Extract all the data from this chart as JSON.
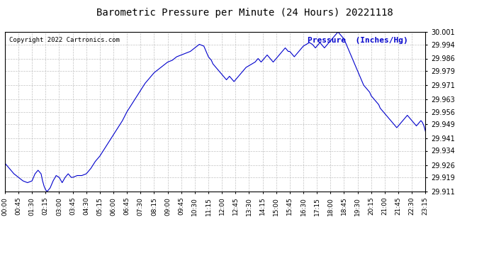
{
  "title": "Barometric Pressure per Minute (24 Hours) 20221118",
  "copyright": "Copyright 2022 Cartronics.com",
  "legend_label": "Pressure  (Inches/Hg)",
  "line_color": "#0000cc",
  "background_color": "#ffffff",
  "grid_color": "#bbbbbb",
  "ylim": [
    29.911,
    30.001
  ],
  "yticks": [
    29.911,
    29.919,
    29.926,
    29.934,
    29.941,
    29.949,
    29.956,
    29.963,
    29.971,
    29.979,
    29.986,
    29.994,
    30.001
  ],
  "xtick_labels": [
    "00:00",
    "00:45",
    "01:30",
    "02:15",
    "03:00",
    "03:45",
    "04:30",
    "05:15",
    "06:00",
    "06:45",
    "07:30",
    "08:15",
    "09:00",
    "09:45",
    "10:30",
    "11:15",
    "12:00",
    "12:45",
    "13:30",
    "14:15",
    "15:00",
    "15:45",
    "16:30",
    "17:15",
    "18:00",
    "18:45",
    "19:30",
    "20:15",
    "21:00",
    "21:45",
    "22:30",
    "23:15"
  ],
  "time_points": [
    0,
    45,
    90,
    135,
    180,
    225,
    270,
    315,
    360,
    405,
    450,
    495,
    540,
    585,
    630,
    675,
    720,
    765,
    810,
    855,
    900,
    945,
    990,
    1035,
    1080,
    1125,
    1170,
    1215,
    1260,
    1305,
    1350,
    1395
  ],
  "pressure_data": [
    [
      0,
      29.927
    ],
    [
      15,
      29.924
    ],
    [
      30,
      29.921
    ],
    [
      45,
      29.919
    ],
    [
      60,
      29.917
    ],
    [
      75,
      29.916
    ],
    [
      90,
      29.917
    ],
    [
      100,
      29.921
    ],
    [
      110,
      29.923
    ],
    [
      120,
      29.921
    ],
    [
      125,
      29.917
    ],
    [
      130,
      29.914
    ],
    [
      135,
      29.912
    ],
    [
      140,
      29.911
    ],
    [
      150,
      29.913
    ],
    [
      160,
      29.917
    ],
    [
      170,
      29.92
    ],
    [
      180,
      29.919
    ],
    [
      190,
      29.916
    ],
    [
      200,
      29.919
    ],
    [
      210,
      29.921
    ],
    [
      215,
      29.92
    ],
    [
      220,
      29.919
    ],
    [
      225,
      29.919
    ],
    [
      240,
      29.92
    ],
    [
      255,
      29.92
    ],
    [
      270,
      29.921
    ],
    [
      285,
      29.924
    ],
    [
      300,
      29.928
    ],
    [
      315,
      29.931
    ],
    [
      330,
      29.935
    ],
    [
      345,
      29.939
    ],
    [
      360,
      29.943
    ],
    [
      375,
      29.947
    ],
    [
      390,
      29.951
    ],
    [
      405,
      29.956
    ],
    [
      420,
      29.96
    ],
    [
      435,
      29.964
    ],
    [
      450,
      29.968
    ],
    [
      465,
      29.972
    ],
    [
      480,
      29.975
    ],
    [
      495,
      29.978
    ],
    [
      510,
      29.98
    ],
    [
      525,
      29.982
    ],
    [
      540,
      29.984
    ],
    [
      555,
      29.985
    ],
    [
      570,
      29.987
    ],
    [
      585,
      29.988
    ],
    [
      600,
      29.989
    ],
    [
      615,
      29.99
    ],
    [
      630,
      29.992
    ],
    [
      645,
      29.994
    ],
    [
      660,
      29.993
    ],
    [
      665,
      29.991
    ],
    [
      670,
      29.989
    ],
    [
      675,
      29.987
    ],
    [
      680,
      29.986
    ],
    [
      685,
      29.985
    ],
    [
      690,
      29.983
    ],
    [
      695,
      29.982
    ],
    [
      700,
      29.981
    ],
    [
      705,
      29.98
    ],
    [
      710,
      29.979
    ],
    [
      715,
      29.978
    ],
    [
      720,
      29.977
    ],
    [
      725,
      29.976
    ],
    [
      730,
      29.975
    ],
    [
      735,
      29.974
    ],
    [
      740,
      29.975
    ],
    [
      745,
      29.976
    ],
    [
      750,
      29.975
    ],
    [
      755,
      29.974
    ],
    [
      760,
      29.973
    ],
    [
      765,
      29.974
    ],
    [
      770,
      29.975
    ],
    [
      775,
      29.976
    ],
    [
      780,
      29.977
    ],
    [
      785,
      29.978
    ],
    [
      790,
      29.979
    ],
    [
      795,
      29.98
    ],
    [
      800,
      29.981
    ],
    [
      810,
      29.982
    ],
    [
      820,
      29.983
    ],
    [
      830,
      29.984
    ],
    [
      840,
      29.986
    ],
    [
      845,
      29.985
    ],
    [
      850,
      29.984
    ],
    [
      855,
      29.985
    ],
    [
      860,
      29.986
    ],
    [
      865,
      29.987
    ],
    [
      870,
      29.988
    ],
    [
      875,
      29.987
    ],
    [
      880,
      29.986
    ],
    [
      885,
      29.985
    ],
    [
      890,
      29.984
    ],
    [
      895,
      29.985
    ],
    [
      900,
      29.986
    ],
    [
      905,
      29.987
    ],
    [
      910,
      29.988
    ],
    [
      915,
      29.989
    ],
    [
      920,
      29.99
    ],
    [
      925,
      29.991
    ],
    [
      930,
      29.992
    ],
    [
      935,
      29.991
    ],
    [
      940,
      29.99
    ],
    [
      945,
      29.99
    ],
    [
      950,
      29.989
    ],
    [
      955,
      29.988
    ],
    [
      960,
      29.987
    ],
    [
      965,
      29.988
    ],
    [
      970,
      29.989
    ],
    [
      975,
      29.99
    ],
    [
      980,
      29.991
    ],
    [
      985,
      29.992
    ],
    [
      990,
      29.993
    ],
    [
      1000,
      29.994
    ],
    [
      1010,
      29.995
    ],
    [
      1020,
      29.994
    ],
    [
      1025,
      29.993
    ],
    [
      1030,
      29.992
    ],
    [
      1035,
      29.993
    ],
    [
      1040,
      29.994
    ],
    [
      1045,
      29.995
    ],
    [
      1050,
      29.994
    ],
    [
      1055,
      29.993
    ],
    [
      1060,
      29.992
    ],
    [
      1065,
      29.993
    ],
    [
      1070,
      29.994
    ],
    [
      1075,
      29.995
    ],
    [
      1080,
      29.996
    ],
    [
      1085,
      29.997
    ],
    [
      1090,
      29.998
    ],
    [
      1095,
      29.999
    ],
    [
      1100,
      30.0
    ],
    [
      1105,
      30.001
    ],
    [
      1110,
      30.0
    ],
    [
      1115,
      29.999
    ],
    [
      1120,
      29.998
    ],
    [
      1125,
      29.997
    ],
    [
      1130,
      29.995
    ],
    [
      1135,
      29.993
    ],
    [
      1140,
      29.991
    ],
    [
      1145,
      29.989
    ],
    [
      1150,
      29.987
    ],
    [
      1155,
      29.985
    ],
    [
      1160,
      29.983
    ],
    [
      1165,
      29.981
    ],
    [
      1170,
      29.979
    ],
    [
      1175,
      29.977
    ],
    [
      1180,
      29.975
    ],
    [
      1185,
      29.973
    ],
    [
      1190,
      29.971
    ],
    [
      1195,
      29.97
    ],
    [
      1200,
      29.969
    ],
    [
      1205,
      29.968
    ],
    [
      1210,
      29.967
    ],
    [
      1215,
      29.965
    ],
    [
      1220,
      29.964
    ],
    [
      1225,
      29.963
    ],
    [
      1230,
      29.962
    ],
    [
      1235,
      29.961
    ],
    [
      1240,
      29.96
    ],
    [
      1245,
      29.958
    ],
    [
      1250,
      29.957
    ],
    [
      1255,
      29.956
    ],
    [
      1260,
      29.955
    ],
    [
      1265,
      29.954
    ],
    [
      1270,
      29.953
    ],
    [
      1275,
      29.952
    ],
    [
      1280,
      29.951
    ],
    [
      1285,
      29.95
    ],
    [
      1290,
      29.949
    ],
    [
      1295,
      29.948
    ],
    [
      1300,
      29.947
    ],
    [
      1305,
      29.948
    ],
    [
      1310,
      29.949
    ],
    [
      1315,
      29.95
    ],
    [
      1320,
      29.951
    ],
    [
      1325,
      29.952
    ],
    [
      1330,
      29.953
    ],
    [
      1335,
      29.954
    ],
    [
      1340,
      29.953
    ],
    [
      1345,
      29.952
    ],
    [
      1350,
      29.951
    ],
    [
      1355,
      29.95
    ],
    [
      1360,
      29.949
    ],
    [
      1365,
      29.948
    ],
    [
      1370,
      29.949
    ],
    [
      1375,
      29.95
    ],
    [
      1380,
      29.951
    ],
    [
      1385,
      29.95
    ],
    [
      1390,
      29.948
    ],
    [
      1395,
      29.945
    ]
  ]
}
